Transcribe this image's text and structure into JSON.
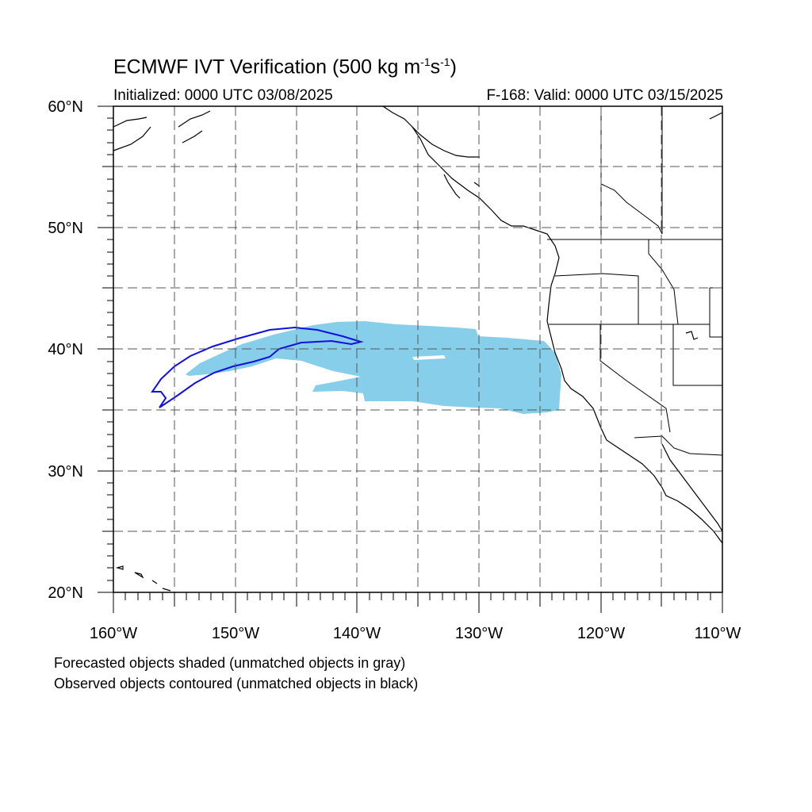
{
  "header": {
    "title_main": "ECMWF IVT Verification (500 kg m",
    "title_exp1": "-1",
    "title_mid": "s",
    "title_exp2": "-1",
    "title_end": ")",
    "initialized": "Initialized: 0000 UTC 03/08/2025",
    "valid": "F-168: Valid: 0000 UTC 03/15/2025"
  },
  "map": {
    "lat_range": [
      20,
      60
    ],
    "lon_range": [
      -160,
      -110
    ],
    "lat_labels": [
      "60°N",
      "50°N",
      "40°N",
      "30°N",
      "20°N"
    ],
    "lon_labels": [
      "160°W",
      "150°W",
      "140°W",
      "130°W",
      "120°W",
      "110°W"
    ],
    "grid_interval_deg": 5,
    "forecast_fill_color": "#87ceeb",
    "observed_contour_color": "#1010e0",
    "coastline_color": "#000000"
  },
  "notes": {
    "line1": "Forecasted objects shaded (unmatched objects in gray)",
    "line2": "Observed objects contoured (unmatched objects in black)"
  }
}
